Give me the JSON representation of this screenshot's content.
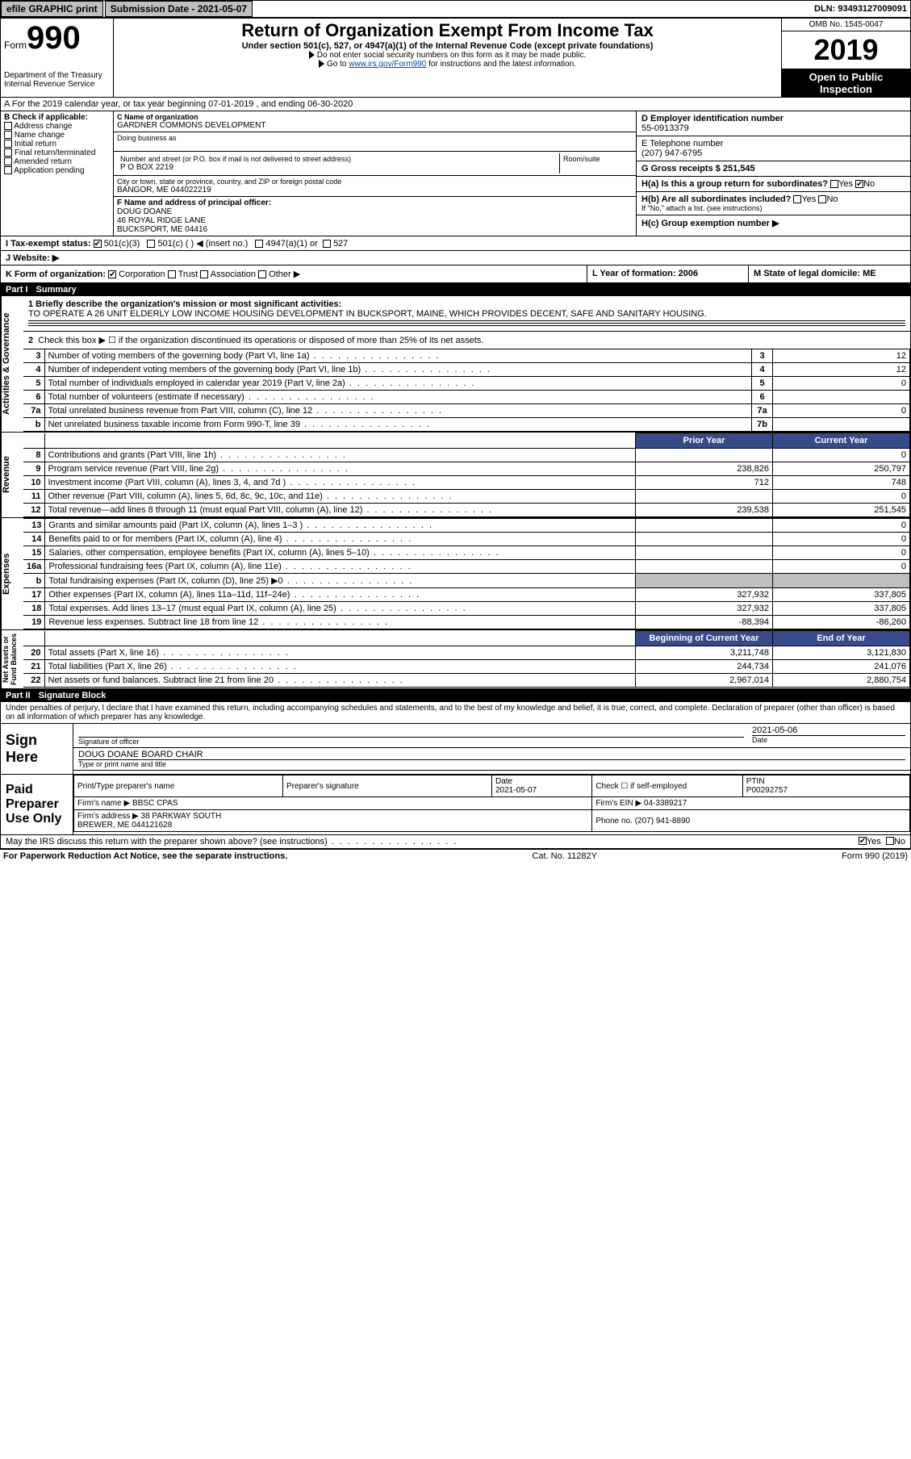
{
  "topbar": {
    "efile": "efile GRAPHIC print",
    "sub_label": "Submission Date - 2021-05-07",
    "dln_label": "DLN: 93493127009091"
  },
  "header": {
    "form_word": "Form",
    "form_num": "990",
    "dept": "Department of the Treasury\nInternal Revenue Service",
    "title": "Return of Organization Exempt From Income Tax",
    "sub1": "Under section 501(c), 527, or 4947(a)(1) of the Internal Revenue Code (except private foundations)",
    "sub2": "Do not enter social security numbers on this form as it may be made public.",
    "sub3_pre": "Go to ",
    "sub3_link": "www.irs.gov/Form990",
    "sub3_post": " for instructions and the latest information.",
    "omb": "OMB No. 1545-0047",
    "year": "2019",
    "open": "Open to Public Inspection"
  },
  "lineA": "A For the 2019 calendar year, or tax year beginning 07-01-2019    , and ending 06-30-2020",
  "checkB": {
    "title": "B Check if applicable:",
    "opts": [
      "Address change",
      "Name change",
      "Initial return",
      "Final return/terminated",
      "Amended return",
      "Application pending"
    ]
  },
  "org": {
    "c_label": "C Name of organization",
    "c_name": "GARDNER COMMONS DEVELOPMENT",
    "dba_label": "Doing business as",
    "addr_label": "Number and street (or P.O. box if mail is not delivered to street address)",
    "addr": "P O BOX 2219",
    "room_label": "Room/suite",
    "city_label": "City or town, state or province, country, and ZIP or foreign postal code",
    "city": "BANGOR, ME  044022219",
    "f_label": "F  Name and address of principal officer:",
    "f_name": "DOUG DOANE",
    "f_addr": "46 ROYAL RIDGE LANE\nBUCKSPORT, ME  04416"
  },
  "right": {
    "d_label": "D Employer identification number",
    "d_val": "55-0913379",
    "e_label": "E Telephone number",
    "e_val": "(207) 947-6795",
    "g_label": "G Gross receipts $ 251,545",
    "ha": "H(a)  Is this a group return for subordinates?",
    "hb": "H(b)  Are all subordinates included?",
    "hb_note": "If \"No,\" attach a list. (see instructions)",
    "hc": "H(c)  Group exemption number ▶",
    "yes": "Yes",
    "no": "No"
  },
  "i_row": {
    "label": "I  Tax-exempt status:",
    "o1": "501(c)(3)",
    "o2": "501(c) (   ) ◀ (insert no.)",
    "o3": "4947(a)(1) or",
    "o4": "527"
  },
  "j_row": "J  Website: ▶",
  "k_row": {
    "label": "K Form of organization:",
    "opts": [
      "Corporation",
      "Trust",
      "Association",
      "Other ▶"
    ]
  },
  "l_row": "L Year of formation: 2006",
  "m_row": "M State of legal domicile: ME",
  "part1": {
    "num": "Part I",
    "title": "Summary"
  },
  "mission_label": "1  Briefly describe the organization's mission or most significant activities:",
  "mission": "TO OPERATE A 26 UNIT ELDERLY LOW INCOME HOUSING DEVELOPMENT IN BUCKSPORT, MAINE, WHICH PROVIDES DECENT, SAFE AND SANITARY HOUSING.",
  "line2": "Check this box ▶ ☐  if the organization discontinued its operations or disposed of more than 25% of its net assets.",
  "gov_rows": [
    {
      "n": "3",
      "d": "Number of voting members of the governing body (Part VI, line 1a)",
      "b": "3",
      "v": "12"
    },
    {
      "n": "4",
      "d": "Number of independent voting members of the governing body (Part VI, line 1b)",
      "b": "4",
      "v": "12"
    },
    {
      "n": "5",
      "d": "Total number of individuals employed in calendar year 2019 (Part V, line 2a)",
      "b": "5",
      "v": "0"
    },
    {
      "n": "6",
      "d": "Total number of volunteers (estimate if necessary)",
      "b": "6",
      "v": ""
    },
    {
      "n": "7a",
      "d": "Total unrelated business revenue from Part VIII, column (C), line 12",
      "b": "7a",
      "v": "0"
    },
    {
      "n": "b",
      "d": "Net unrelated business taxable income from Form 990-T, line 39",
      "b": "7b",
      "v": ""
    }
  ],
  "prior_label": "Prior Year",
  "current_label": "Current Year",
  "rev_rows": [
    {
      "n": "8",
      "d": "Contributions and grants (Part VIII, line 1h)",
      "p": "",
      "c": "0"
    },
    {
      "n": "9",
      "d": "Program service revenue (Part VIII, line 2g)",
      "p": "238,826",
      "c": "250,797"
    },
    {
      "n": "10",
      "d": "Investment income (Part VIII, column (A), lines 3, 4, and 7d )",
      "p": "712",
      "c": "748"
    },
    {
      "n": "11",
      "d": "Other revenue (Part VIII, column (A), lines 5, 6d, 8c, 9c, 10c, and 11e)",
      "p": "",
      "c": "0"
    },
    {
      "n": "12",
      "d": "Total revenue—add lines 8 through 11 (must equal Part VIII, column (A), line 12)",
      "p": "239,538",
      "c": "251,545"
    }
  ],
  "exp_rows": [
    {
      "n": "13",
      "d": "Grants and similar amounts paid (Part IX, column (A), lines 1–3 )",
      "p": "",
      "c": "0"
    },
    {
      "n": "14",
      "d": "Benefits paid to or for members (Part IX, column (A), line 4)",
      "p": "",
      "c": "0"
    },
    {
      "n": "15",
      "d": "Salaries, other compensation, employee benefits (Part IX, column (A), lines 5–10)",
      "p": "",
      "c": "0"
    },
    {
      "n": "16a",
      "d": "Professional fundraising fees (Part IX, column (A), line 11e)",
      "p": "",
      "c": "0"
    },
    {
      "n": "b",
      "d": "Total fundraising expenses (Part IX, column (D), line 25) ▶0",
      "p": "shade",
      "c": "shade"
    },
    {
      "n": "17",
      "d": "Other expenses (Part IX, column (A), lines 11a–11d, 11f–24e)",
      "p": "327,932",
      "c": "337,805"
    },
    {
      "n": "18",
      "d": "Total expenses. Add lines 13–17 (must equal Part IX, column (A), line 25)",
      "p": "327,932",
      "c": "337,805"
    },
    {
      "n": "19",
      "d": "Revenue less expenses. Subtract line 18 from line 12",
      "p": "-88,394",
      "c": "-86,260"
    }
  ],
  "na_hdr_l": "Beginning of Current Year",
  "na_hdr_r": "End of Year",
  "na_rows": [
    {
      "n": "20",
      "d": "Total assets (Part X, line 16)",
      "p": "3,211,748",
      "c": "3,121,830"
    },
    {
      "n": "21",
      "d": "Total liabilities (Part X, line 26)",
      "p": "244,734",
      "c": "241,076"
    },
    {
      "n": "22",
      "d": "Net assets or fund balances. Subtract line 21 from line 20",
      "p": "2,967,014",
      "c": "2,880,754"
    }
  ],
  "vtabs": {
    "gov": "Activities & Governance",
    "rev": "Revenue",
    "exp": "Expenses",
    "na": "Net Assets or\nFund Balances"
  },
  "part2": {
    "num": "Part II",
    "title": "Signature Block"
  },
  "sig_decl": "Under penalties of perjury, I declare that I have examined this return, including accompanying schedules and statements, and to the best of my knowledge and belief, it is true, correct, and complete. Declaration of preparer (other than officer) is based on all information of which preparer has any knowledge.",
  "sig": {
    "here": "Sign Here",
    "sig_label": "Signature of officer",
    "date_label": "Date",
    "date_val": "2021-05-06",
    "name": "DOUG DOANE  BOARD CHAIR",
    "name_label": "Type or print name and title"
  },
  "prep": {
    "title": "Paid Preparer Use Only",
    "h1": "Print/Type preparer's name",
    "h2": "Preparer's signature",
    "h3": "Date",
    "h4": "Check ☐ if self-employed",
    "h5": "PTIN",
    "date": "2021-05-07",
    "ptin": "P00292757",
    "firm_l": "Firm's name    ▶",
    "firm": "BBSC CPAS",
    "ein_l": "Firm's EIN ▶",
    "ein": "04-3389217",
    "addr_l": "Firm's address ▶",
    "addr": "38 PARKWAY SOUTH\nBREWER, ME  044121628",
    "phone_l": "Phone no.",
    "phone": "(207) 941-8890"
  },
  "discuss": "May the IRS discuss this return with the preparer shown above? (see instructions)",
  "footer": {
    "l": "For Paperwork Reduction Act Notice, see the separate instructions.",
    "m": "Cat. No. 11282Y",
    "r": "Form 990 (2019)"
  }
}
